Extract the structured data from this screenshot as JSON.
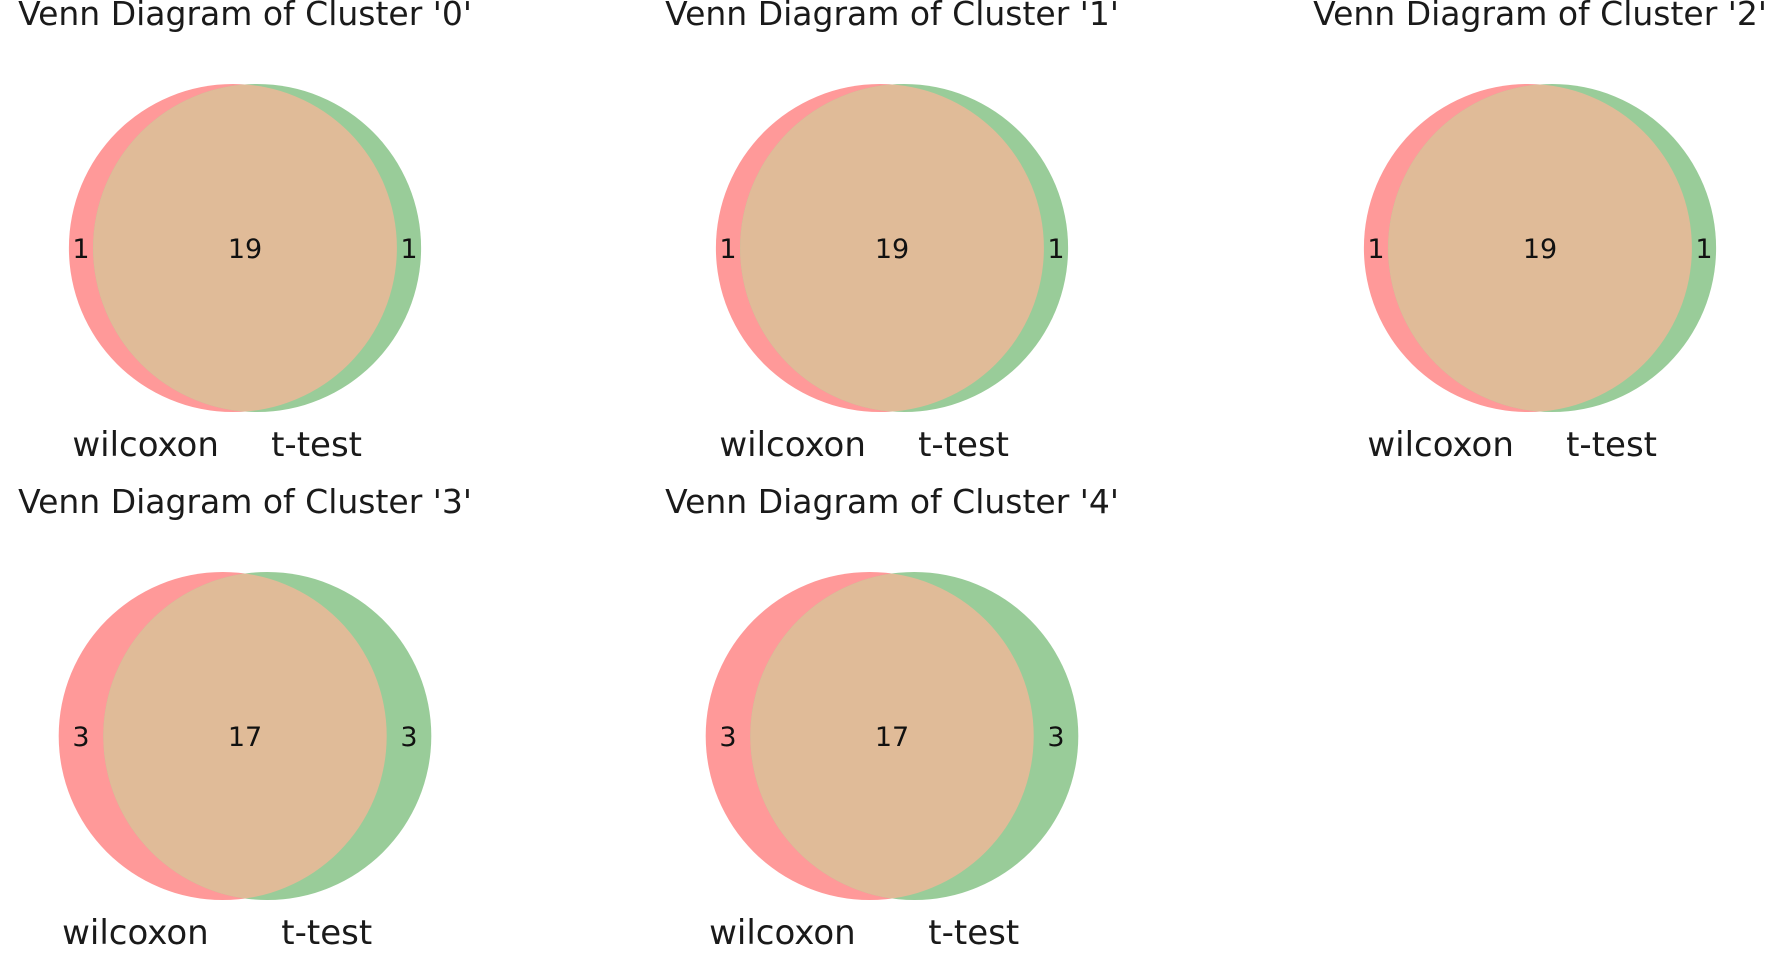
{
  "colors": {
    "set_a": "#ff9999",
    "set_b": "#99cc99",
    "overlap": "#e0bb98",
    "text": "#1a1a1a"
  },
  "chart_data": [
    {
      "type": "venn",
      "title": "Venn Diagram of Cluster '0'",
      "sets": [
        "wilcoxon",
        "t-test"
      ],
      "only_a": "1",
      "both": "19",
      "only_b": "1"
    },
    {
      "type": "venn",
      "title": "Venn Diagram of Cluster '1'",
      "sets": [
        "wilcoxon",
        "t-test"
      ],
      "only_a": "1",
      "both": "19",
      "only_b": "1"
    },
    {
      "type": "venn",
      "title": "Venn Diagram of Cluster '2'",
      "sets": [
        "wilcoxon",
        "t-test"
      ],
      "only_a": "1",
      "both": "19",
      "only_b": "1"
    },
    {
      "type": "venn",
      "title": "Venn Diagram of Cluster '3'",
      "sets": [
        "wilcoxon",
        "t-test"
      ],
      "only_a": "3",
      "both": "17",
      "only_b": "3"
    },
    {
      "type": "venn",
      "title": "Venn Diagram of Cluster '4'",
      "sets": [
        "wilcoxon",
        "t-test"
      ],
      "only_a": "3",
      "both": "17",
      "only_b": "3"
    }
  ]
}
